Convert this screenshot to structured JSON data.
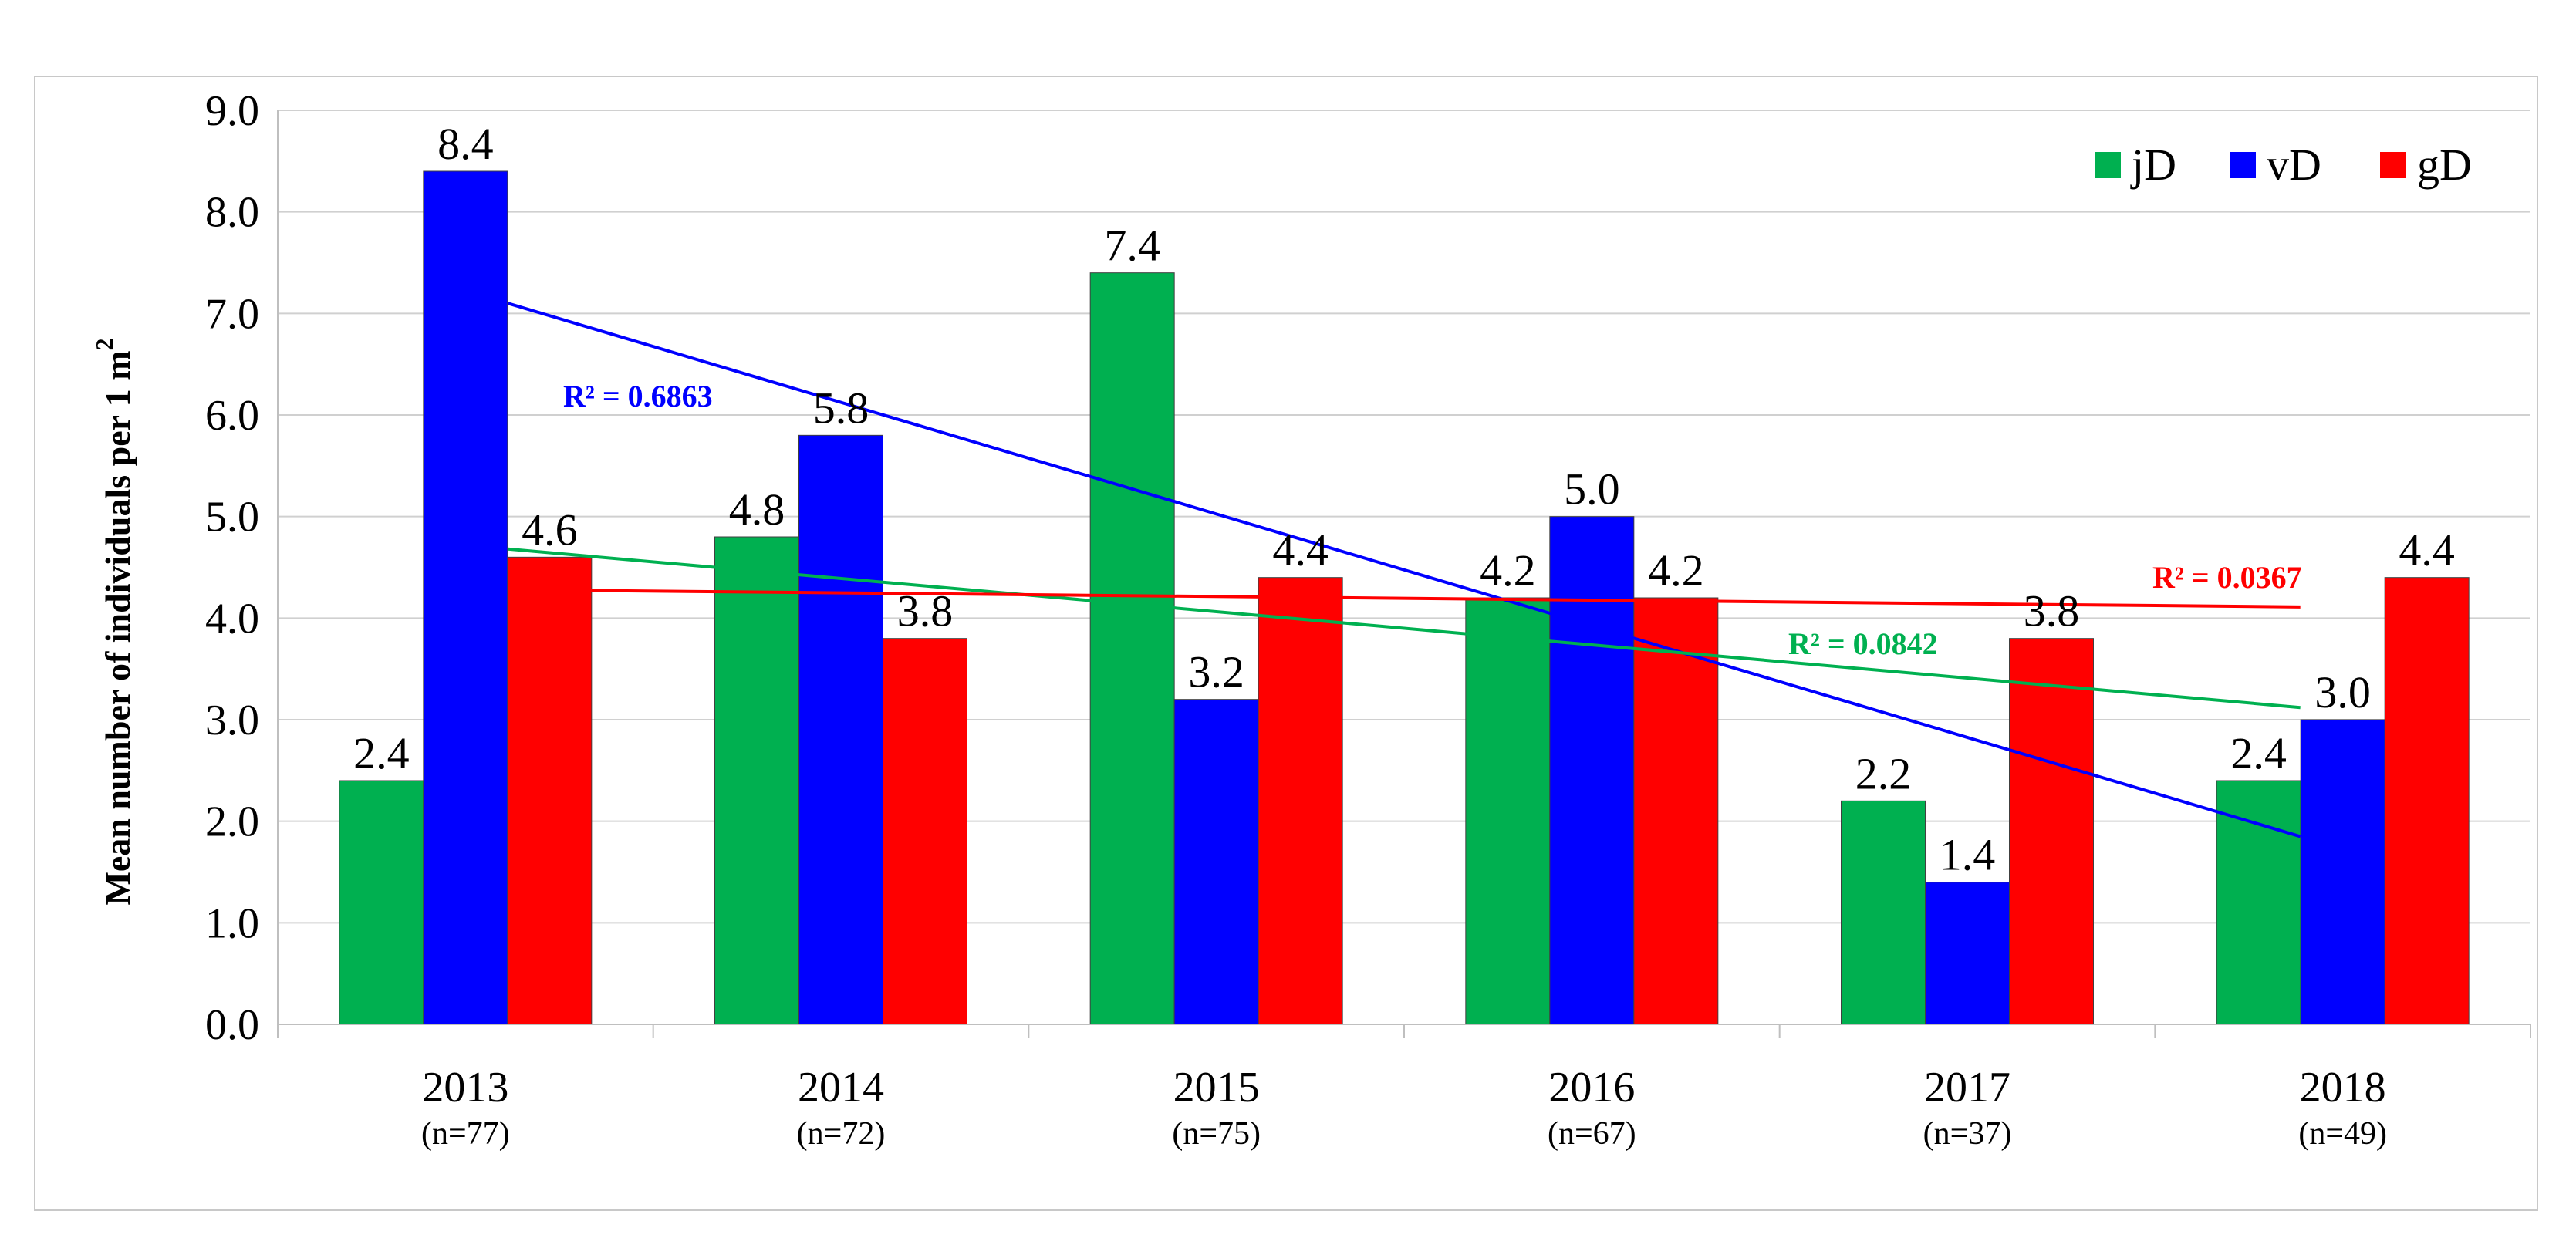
{
  "chart_data": {
    "type": "bar",
    "title": "",
    "xlabel": "",
    "ylabel": "Mean number of individuals per 1 m",
    "ylabel_sup": "2",
    "ylim": [
      0,
      9
    ],
    "yticks": [
      "0.0",
      "1.0",
      "2.0",
      "3.0",
      "4.0",
      "5.0",
      "6.0",
      "7.0",
      "8.0",
      "9.0"
    ],
    "grid": true,
    "legend_position": "top-right",
    "categories": [
      "2013",
      "2014",
      "2015",
      "2016",
      "2017",
      "2018"
    ],
    "category_sublabels": [
      "(n=77)",
      "(n=72)",
      "(n=75)",
      "(n=67)",
      "(n=37)",
      "(n=49)"
    ],
    "series": [
      {
        "name": "jD",
        "color": "#00b050",
        "values": [
          2.4,
          4.8,
          7.4,
          4.2,
          2.2,
          2.4
        ],
        "labels": [
          "2.4",
          "4.8",
          "7.4",
          "4.2",
          "2.2",
          "2.4"
        ]
      },
      {
        "name": "vD",
        "color": "#0000ff",
        "values": [
          8.4,
          5.8,
          3.2,
          5.0,
          1.4,
          3.0
        ],
        "labels": [
          "8.4",
          "5.8",
          "3.2",
          "5.0",
          "1.4",
          "3.0"
        ]
      },
      {
        "name": "gD",
        "color": "#ff0000",
        "values": [
          4.6,
          3.8,
          4.4,
          4.2,
          3.8,
          4.4
        ],
        "labels": [
          "4.6",
          "3.8",
          "4.4",
          "4.2",
          "3.8",
          "4.4"
        ]
      }
    ],
    "trendlines": [
      {
        "series": "vD",
        "color": "#0000ff",
        "type": "linear",
        "start": 7.1,
        "end": 1.85,
        "r2": "R² = 0.6863"
      },
      {
        "series": "jD",
        "color": "#00b050",
        "type": "linear",
        "start": 4.68,
        "end": 3.12,
        "r2": "R² = 0.0842"
      },
      {
        "series": "gD",
        "color": "#ff0000",
        "type": "linear",
        "start": 4.28,
        "end": 4.11,
        "r2": "R² = 0.0367"
      }
    ]
  }
}
